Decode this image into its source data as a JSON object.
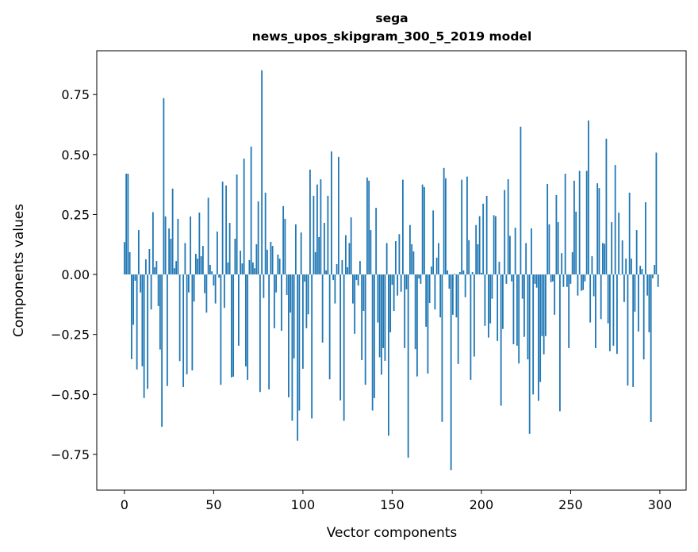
{
  "chart_data": {
    "type": "bar",
    "title": "sega",
    "subtitle": "news_upos_skipgram_300_5_2019 model",
    "xlabel": "Vector components",
    "ylabel": "Components values",
    "xlim": [
      -15.5,
      314.7
    ],
    "ylim": [
      -0.899,
      0.9325
    ],
    "xticks": [
      0,
      50,
      100,
      150,
      200,
      250,
      300
    ],
    "xtick_labels": [
      "0",
      "50",
      "100",
      "150",
      "200",
      "250",
      "300"
    ],
    "yticks": [
      0.75,
      0.5,
      0.25,
      0,
      -0.25,
      -0.5,
      -0.75
    ],
    "ytick_labels": [
      "0.75",
      "0.50",
      "0.25",
      "0.00",
      "−0.25",
      "−0.50",
      "−0.75"
    ],
    "grid": false,
    "bar_color": "#1f77b4",
    "values": [
      0.135,
      0.42,
      0.42,
      0.093,
      -0.353,
      -0.21,
      -0.026,
      -0.396,
      0.185,
      -0.075,
      -0.383,
      -0.515,
      0.063,
      -0.477,
      0.106,
      -0.146,
      0.26,
      0.03,
      0.056,
      -0.132,
      -0.313,
      -0.635,
      0.735,
      0.242,
      -0.465,
      0.192,
      0.149,
      0.358,
      0.026,
      0.056,
      0.232,
      -0.361,
      0.0,
      -0.469,
      0.131,
      -0.416,
      -0.075,
      0.242,
      -0.4,
      -0.113,
      0.086,
      0.066,
      0.258,
      0.076,
      0.119,
      -0.078,
      -0.159,
      0.32,
      0.04,
      0.013,
      -0.046,
      -0.121,
      0.179,
      -0.013,
      -0.46,
      0.387,
      -0.139,
      0.371,
      0.05,
      0.215,
      -0.429,
      -0.426,
      0.149,
      0.417,
      -0.297,
      0.099,
      0.046,
      0.483,
      -0.383,
      -0.439,
      0.06,
      0.533,
      0.05,
      0.026,
      0.126,
      0.305,
      -0.49,
      0.851,
      -0.098,
      0.341,
      0.103,
      -0.479,
      0.136,
      0.119,
      -0.224,
      -0.075,
      0.083,
      0.066,
      -0.235,
      0.285,
      0.232,
      -0.086,
      -0.512,
      -0.159,
      -0.61,
      -0.35,
      0.209,
      -0.693,
      -0.567,
      0.175,
      -0.393,
      -0.03,
      -0.224,
      -0.166,
      0.437,
      -0.6,
      0.328,
      0.093,
      0.375,
      0.156,
      0.397,
      -0.284,
      0.215,
      0.017,
      0.328,
      -0.437,
      0.513,
      -0.023,
      -0.121,
      0.043,
      0.49,
      -0.525,
      0.06,
      -0.61,
      0.164,
      0.03,
      0.131,
      0.238,
      -0.121,
      -0.247,
      -0.023,
      -0.046,
      0.056,
      -0.357,
      -0.152,
      -0.46,
      0.404,
      0.391,
      0.185,
      -0.567,
      -0.515,
      0.278,
      -0.2,
      -0.345,
      -0.418,
      -0.307,
      -0.36,
      0.131,
      -0.672,
      -0.241,
      -0.043,
      -0.152,
      0.139,
      -0.088,
      0.168,
      -0.072,
      0.395,
      -0.307,
      -0.062,
      -0.764,
      0.206,
      0.126,
      0.096,
      -0.311,
      -0.425,
      -0.017,
      -0.039,
      0.375,
      0.364,
      -0.218,
      -0.413,
      -0.119,
      0.033,
      0.267,
      -0.146,
      0.07,
      0.131,
      -0.179,
      -0.614,
      0.444,
      0.401,
      0.017,
      -0.059,
      -0.816,
      -0.168,
      0.003,
      -0.179,
      -0.373,
      0.01,
      0.395,
      0.017,
      -0.095,
      0.408,
      0.143,
      -0.439,
      0.01,
      -0.342,
      0.206,
      0.126,
      0.243,
      0.007,
      0.295,
      -0.214,
      0.328,
      -0.263,
      -0.204,
      -0.101,
      0.247,
      0.243,
      -0.277,
      0.053,
      -0.547,
      -0.227,
      0.352,
      -0.039,
      0.397,
      0.161,
      -0.029,
      -0.291,
      0.195,
      -0.297,
      -0.371,
      0.616,
      -0.101,
      -0.26,
      0.131,
      -0.354,
      -0.664,
      0.192,
      -0.5,
      -0.039,
      -0.055,
      -0.527,
      -0.448,
      -0.257,
      -0.333,
      -0.257,
      0.377,
      0.209,
      -0.032,
      -0.029,
      -0.168,
      0.331,
      0.218,
      -0.57,
      0.089,
      -0.052,
      0.42,
      -0.052,
      -0.307,
      -0.039,
      0.093,
      0.391,
      0.262,
      -0.088,
      0.432,
      -0.068,
      -0.065,
      -0.029,
      0.432,
      0.642,
      -0.2,
      0.076,
      -0.091,
      -0.307,
      0.38,
      0.36,
      -0.186,
      0.131,
      0.128,
      0.566,
      -0.204,
      -0.32,
      0.218,
      -0.297,
      0.456,
      -0.331,
      0.258,
      -0.002,
      0.142,
      -0.115,
      0.066,
      -0.463,
      0.341,
      0.066,
      -0.469,
      -0.155,
      0.185,
      -0.238,
      0.036,
      0.023,
      -0.354,
      0.301,
      -0.088,
      -0.241,
      -0.615,
      -0.016,
      0.04,
      0.508,
      -0.052
    ]
  }
}
